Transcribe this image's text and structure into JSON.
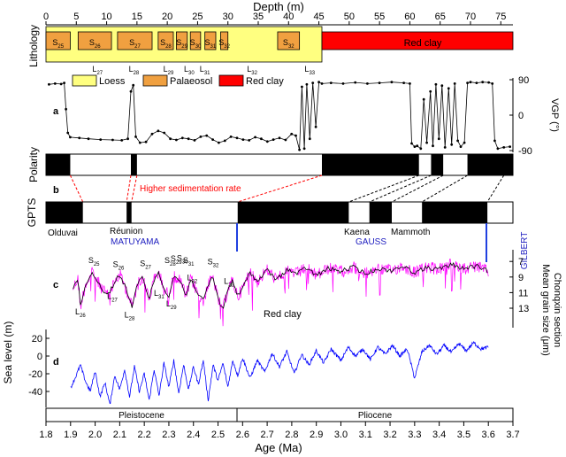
{
  "chart_data": {
    "type": "line",
    "depth_axis": {
      "label": "Depth (m)",
      "range": [
        0,
        77
      ],
      "ticks": [
        0,
        5,
        10,
        15,
        20,
        25,
        30,
        35,
        40,
        45,
        50,
        55,
        60,
        65,
        70,
        75
      ]
    },
    "age_axis": {
      "label": "Age (Ma)",
      "range": [
        1.8,
        3.7
      ],
      "ticks": [
        "1.8",
        "1.9",
        "2.0",
        "2.1",
        "2.2",
        "2.3",
        "2.4",
        "2.5",
        "2.6",
        "2.7",
        "2.8",
        "2.9",
        "3.0",
        "3.1",
        "3.2",
        "3.3",
        "3.4",
        "3.5",
        "3.6",
        "3.7"
      ]
    },
    "lithology": {
      "label": "Lithology",
      "colors": {
        "loess": "#ffff80",
        "palaeosol": "#f0a040",
        "red_clay": "#ff0000"
      },
      "legend": [
        {
          "key": "loess",
          "label": "Loess"
        },
        {
          "key": "palaeosol",
          "label": "Palaeosol"
        },
        {
          "key": "red_clay",
          "label": "Red clay"
        }
      ],
      "red_clay_label": "Red clay",
      "red_clay_top_depth": 45.5,
      "palaeosols": [
        {
          "label": "S25",
          "top": 0.0,
          "bottom": 4.0
        },
        {
          "label": "S26",
          "top": 5.3,
          "bottom": 10.8
        },
        {
          "label": "S27",
          "top": 11.8,
          "bottom": 17.5
        },
        {
          "label": "S28",
          "top": 18.5,
          "bottom": 21.0
        },
        {
          "label": "S29",
          "top": 21.5,
          "bottom": 23.3
        },
        {
          "label": "S30",
          "top": 23.8,
          "bottom": 25.5
        },
        {
          "label": "S31",
          "top": 26.2,
          "bottom": 28.0
        },
        {
          "label": "S32",
          "top": 28.8,
          "bottom": 30.0
        },
        {
          "label": "S32",
          "top": 38.2,
          "bottom": 41.8
        }
      ],
      "loess_labels": [
        {
          "label": "L27",
          "depth": 8.5
        },
        {
          "label": "L28",
          "depth": 14.5
        },
        {
          "label": "L29",
          "depth": 20.2
        },
        {
          "label": "L30",
          "depth": 23.6
        },
        {
          "label": "L31",
          "depth": 26.2
        },
        {
          "label": "L32",
          "depth": 34.0
        },
        {
          "label": "L33",
          "depth": 43.5
        }
      ]
    },
    "vgp": {
      "panel": "a",
      "ylabel": "VGP (°)",
      "ticks": [
        90,
        0,
        -90
      ],
      "ylim": [
        -100,
        100
      ],
      "points": [
        [
          0.5,
          78
        ],
        [
          1.5,
          80
        ],
        [
          2.5,
          79
        ],
        [
          3.0,
          82
        ],
        [
          3.3,
          15
        ],
        [
          3.6,
          -45
        ],
        [
          4.0,
          -56
        ],
        [
          5.5,
          -58
        ],
        [
          7,
          -60
        ],
        [
          9,
          -62
        ],
        [
          11,
          -63
        ],
        [
          12.5,
          -64
        ],
        [
          13.5,
          -60
        ],
        [
          14.0,
          60
        ],
        [
          14.4,
          76
        ],
        [
          14.8,
          -55
        ],
        [
          15.5,
          -70
        ],
        [
          16.5,
          -68
        ],
        [
          17.5,
          -48
        ],
        [
          18.5,
          -40
        ],
        [
          19.5,
          -45
        ],
        [
          20.5,
          -60
        ],
        [
          21.5,
          -63
        ],
        [
          22.5,
          -58
        ],
        [
          23.5,
          -60
        ],
        [
          24.5,
          -64
        ],
        [
          25.5,
          -55
        ],
        [
          26.5,
          -52
        ],
        [
          27.5,
          -62
        ],
        [
          28.5,
          -70
        ],
        [
          29.5,
          -65
        ],
        [
          30.5,
          -55
        ],
        [
          31.5,
          -58
        ],
        [
          32.5,
          -62
        ],
        [
          33.5,
          -64
        ],
        [
          34.5,
          -56
        ],
        [
          35.5,
          -60
        ],
        [
          36.5,
          -67
        ],
        [
          37.5,
          -62
        ],
        [
          38.5,
          -58
        ],
        [
          39.5,
          -63
        ],
        [
          40.5,
          -48
        ],
        [
          41.2,
          -52
        ],
        [
          41.8,
          -88
        ],
        [
          42.2,
          72
        ],
        [
          42.6,
          -85
        ],
        [
          43.0,
          78
        ],
        [
          43.5,
          -60
        ],
        [
          44.0,
          82
        ],
        [
          44.5,
          -30
        ],
        [
          45.0,
          84
        ],
        [
          45.5,
          80
        ],
        [
          47,
          82
        ],
        [
          49,
          80
        ],
        [
          51,
          83
        ],
        [
          53,
          80
        ],
        [
          55,
          82
        ],
        [
          57,
          84
        ],
        [
          59,
          82
        ],
        [
          60.0,
          80
        ],
        [
          60.3,
          -72
        ],
        [
          60.8,
          -80
        ],
        [
          61.2,
          -78
        ],
        [
          61.8,
          -85
        ],
        [
          62.3,
          40
        ],
        [
          62.8,
          -70
        ],
        [
          63.4,
          60
        ],
        [
          63.8,
          -78
        ],
        [
          64.3,
          78
        ],
        [
          64.8,
          -60
        ],
        [
          65.3,
          75
        ],
        [
          65.8,
          -82
        ],
        [
          66.4,
          68
        ],
        [
          66.9,
          -75
        ],
        [
          67.4,
          80
        ],
        [
          67.9,
          -65
        ],
        [
          68.4,
          -80
        ],
        [
          69.0,
          -70
        ],
        [
          69.5,
          82
        ],
        [
          70,
          84
        ],
        [
          71,
          82
        ],
        [
          72,
          84
        ],
        [
          73,
          83
        ],
        [
          73.6,
          80
        ],
        [
          74.0,
          -65
        ],
        [
          74.5,
          -85
        ],
        [
          75.5,
          -82
        ],
        [
          76.5,
          -80
        ]
      ]
    },
    "polarity": {
      "label": "Polarity",
      "normal_intervals": [
        [
          0,
          4.0
        ],
        [
          14.0,
          15.0
        ],
        [
          45.5,
          61.5
        ],
        [
          63.5,
          65.5
        ],
        [
          69.5,
          77
        ]
      ]
    },
    "gpts": {
      "panel": "b",
      "label": "GPTS",
      "normal_intervals_ma": [
        [
          1.8,
          1.95
        ],
        [
          2.128,
          2.148
        ],
        [
          2.58,
          3.032
        ],
        [
          3.116,
          3.207
        ],
        [
          3.33,
          3.596
        ]
      ],
      "event_labels": [
        "Olduvai",
        "Réunion",
        "Kaena",
        "Mammoth"
      ],
      "chron_labels": [
        "MATUYAMA",
        "GAUSS",
        "GILBERT"
      ],
      "sedimentation_note": "Higher sedimentation rate",
      "tie_lines": [
        {
          "depth": 4.0,
          "age": 1.95,
          "style": "red"
        },
        {
          "depth": 14.0,
          "age": 2.128,
          "style": "red"
        },
        {
          "depth": 15.0,
          "age": 2.148,
          "style": "red"
        },
        {
          "depth": 45.5,
          "age": 2.58,
          "style": "red"
        },
        {
          "depth": 61.5,
          "age": 3.032,
          "style": "black"
        },
        {
          "depth": 63.5,
          "age": 3.116,
          "style": "black"
        },
        {
          "depth": 65.5,
          "age": 3.207,
          "style": "black"
        },
        {
          "depth": 69.5,
          "age": 3.33,
          "style": "black"
        },
        {
          "depth": 75.5,
          "age": 3.596,
          "style": "black"
        }
      ]
    },
    "grain_size": {
      "panel": "c",
      "ylabel_line1": "Mean grain size (μm)",
      "ylabel_line2": "Chonqxin section",
      "ticks": [
        7,
        9,
        11,
        13
      ],
      "ylim": [
        5.5,
        15.5
      ],
      "inverted": true,
      "colors": {
        "raw": "#ff00ff",
        "smoothed": "#000000"
      },
      "red_clay_label": "Red clay",
      "range_ma": [
        1.91,
        3.6
      ],
      "anchor_points": [
        [
          1.91,
          10.4
        ],
        [
          1.93,
          9.2
        ],
        [
          1.94,
          12.8
        ],
        [
          1.96,
          10.0
        ],
        [
          1.99,
          8.4
        ],
        [
          2.03,
          10.6
        ],
        [
          2.05,
          11.4
        ],
        [
          2.08,
          9.6
        ],
        [
          2.1,
          8.7
        ],
        [
          2.13,
          10.8
        ],
        [
          2.15,
          12.8
        ],
        [
          2.17,
          10.3
        ],
        [
          2.19,
          8.9
        ],
        [
          2.21,
          10.7
        ],
        [
          2.22,
          11.8
        ],
        [
          2.24,
          9.3
        ],
        [
          2.26,
          8.5
        ],
        [
          2.28,
          10.6
        ],
        [
          2.3,
          11.3
        ],
        [
          2.32,
          8.8
        ],
        [
          2.35,
          9.7
        ],
        [
          2.37,
          11.5
        ],
        [
          2.39,
          9.2
        ],
        [
          2.42,
          11.2
        ],
        [
          2.44,
          12.2
        ],
        [
          2.46,
          10.0
        ],
        [
          2.48,
          9.0
        ],
        [
          2.5,
          11.8
        ],
        [
          2.52,
          13.2
        ],
        [
          2.54,
          10.5
        ],
        [
          2.56,
          9.5
        ],
        [
          2.58,
          11.5
        ],
        [
          2.6,
          10.5
        ],
        [
          2.63,
          8.3
        ],
        [
          2.66,
          9.6
        ],
        [
          2.7,
          8.1
        ],
        [
          2.74,
          9.4
        ],
        [
          2.78,
          8.0
        ],
        [
          2.82,
          8.6
        ],
        [
          2.86,
          7.8
        ],
        [
          2.9,
          8.8
        ],
        [
          2.95,
          7.9
        ],
        [
          3.0,
          8.3
        ],
        [
          3.05,
          7.7
        ],
        [
          3.1,
          8.6
        ],
        [
          3.15,
          7.9
        ],
        [
          3.2,
          8.2
        ],
        [
          3.25,
          7.6
        ],
        [
          3.3,
          8.4
        ],
        [
          3.35,
          7.8
        ],
        [
          3.4,
          8.0
        ],
        [
          3.45,
          7.4
        ],
        [
          3.5,
          7.9
        ],
        [
          3.55,
          7.6
        ],
        [
          3.6,
          8.3
        ]
      ],
      "labels": [
        {
          "text": "S25",
          "age": 1.995,
          "value": 7.2,
          "kind": "S"
        },
        {
          "text": "S26",
          "age": 2.095,
          "value": 7.7,
          "kind": "S"
        },
        {
          "text": "S27",
          "age": 2.205,
          "value": 7.6,
          "kind": "S"
        },
        {
          "text": "S28",
          "age": 2.305,
          "value": 7.2,
          "kind": "S"
        },
        {
          "text": "S29",
          "age": 2.33,
          "value": 7.0,
          "kind": "S"
        },
        {
          "text": "S30",
          "age": 2.355,
          "value": 6.9,
          "kind": "S"
        },
        {
          "text": "S31",
          "age": 2.38,
          "value": 7.2,
          "kind": "S"
        },
        {
          "text": "S32",
          "age": 2.48,
          "value": 7.4,
          "kind": "S"
        },
        {
          "text": "L26",
          "age": 1.94,
          "value": 13.8,
          "kind": "L"
        },
        {
          "text": "L27",
          "age": 2.07,
          "value": 11.8,
          "kind": "L"
        },
        {
          "text": "L28",
          "age": 2.14,
          "value": 14.2,
          "kind": "L"
        },
        {
          "text": "L29",
          "age": 2.31,
          "value": 12.8,
          "kind": "L"
        },
        {
          "text": "L31",
          "age": 2.26,
          "value": 11.4,
          "kind": "L"
        },
        {
          "text": "L32",
          "age": 2.395,
          "value": 9.4,
          "kind": "L"
        },
        {
          "text": "L33",
          "age": 2.545,
          "value": 9.9,
          "kind": "L"
        }
      ]
    },
    "sea_level": {
      "panel": "d",
      "ylabel": "Sea level (m)",
      "ticks": [
        20,
        0,
        -20,
        -40
      ],
      "ylim": [
        -58,
        30
      ],
      "color": "#0000ff",
      "range_ma": [
        1.9,
        3.6
      ],
      "anchor_points": [
        [
          1.9,
          -36
        ],
        [
          1.92,
          -24
        ],
        [
          1.94,
          -10
        ],
        [
          1.96,
          -28
        ],
        [
          1.98,
          -40
        ],
        [
          2.0,
          -17
        ],
        [
          2.02,
          -46
        ],
        [
          2.04,
          -30
        ],
        [
          2.06,
          -55
        ],
        [
          2.08,
          -22
        ],
        [
          2.1,
          -38
        ],
        [
          2.12,
          -15
        ],
        [
          2.14,
          -46
        ],
        [
          2.16,
          -12
        ],
        [
          2.18,
          -40
        ],
        [
          2.2,
          -20
        ],
        [
          2.22,
          -50
        ],
        [
          2.24,
          -15
        ],
        [
          2.26,
          -45
        ],
        [
          2.28,
          -8
        ],
        [
          2.3,
          -35
        ],
        [
          2.32,
          -5
        ],
        [
          2.34,
          -42
        ],
        [
          2.36,
          -10
        ],
        [
          2.38,
          -38
        ],
        [
          2.4,
          -12
        ],
        [
          2.42,
          -32
        ],
        [
          2.44,
          -5
        ],
        [
          2.46,
          -50
        ],
        [
          2.48,
          -10
        ],
        [
          2.5,
          -28
        ],
        [
          2.52,
          -8
        ],
        [
          2.54,
          -35
        ],
        [
          2.56,
          -5
        ],
        [
          2.58,
          -22
        ],
        [
          2.6,
          -2
        ],
        [
          2.63,
          -25
        ],
        [
          2.66,
          -5
        ],
        [
          2.69,
          -18
        ],
        [
          2.72,
          3
        ],
        [
          2.75,
          -12
        ],
        [
          2.78,
          5
        ],
        [
          2.81,
          -20
        ],
        [
          2.84,
          2
        ],
        [
          2.87,
          -10
        ],
        [
          2.9,
          6
        ],
        [
          2.93,
          -8
        ],
        [
          2.96,
          8
        ],
        [
          3.0,
          -5
        ],
        [
          3.03,
          10
        ],
        [
          3.06,
          0
        ],
        [
          3.09,
          8
        ],
        [
          3.12,
          -4
        ],
        [
          3.15,
          10
        ],
        [
          3.18,
          2
        ],
        [
          3.21,
          12
        ],
        [
          3.24,
          0
        ],
        [
          3.27,
          8
        ],
        [
          3.3,
          -25
        ],
        [
          3.33,
          5
        ],
        [
          3.36,
          12
        ],
        [
          3.39,
          2
        ],
        [
          3.42,
          12
        ],
        [
          3.45,
          4
        ],
        [
          3.48,
          14
        ],
        [
          3.51,
          6
        ],
        [
          3.54,
          15
        ],
        [
          3.57,
          8
        ],
        [
          3.6,
          10
        ]
      ]
    },
    "epochs": [
      {
        "label": "Pleistocene",
        "from": 1.8,
        "to": 2.58
      },
      {
        "label": "Pliocene",
        "from": 2.58,
        "to": 3.7
      }
    ]
  }
}
